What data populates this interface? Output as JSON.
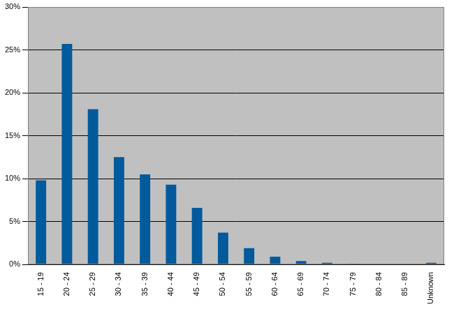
{
  "chart_data": {
    "type": "bar",
    "categories": [
      "15 - 19",
      "20 - 24",
      "25 - 29",
      "30 - 34",
      "35 - 39",
      "40 - 44",
      "45 - 49",
      "50 - 54",
      "55 - 59",
      "60 - 64",
      "65 - 69",
      "70 - 74",
      "75 - 79",
      "80 - 84",
      "85 - 89",
      "Unknown"
    ],
    "values": [
      9.8,
      25.7,
      18.1,
      12.5,
      10.5,
      9.3,
      6.6,
      3.7,
      1.9,
      0.9,
      0.4,
      0.2,
      0.1,
      0,
      0,
      0.2
    ],
    "color": "#005a9c",
    "ylim": [
      0,
      30
    ],
    "yticks": [
      {
        "value": 0,
        "label": "0%"
      },
      {
        "value": 5,
        "label": "5%"
      },
      {
        "value": 10,
        "label": "10%"
      },
      {
        "value": 15,
        "label": "15%"
      },
      {
        "value": 20,
        "label": "20%"
      },
      {
        "value": 25,
        "label": "25%"
      },
      {
        "value": 30,
        "label": "30%"
      }
    ],
    "grid": true
  }
}
